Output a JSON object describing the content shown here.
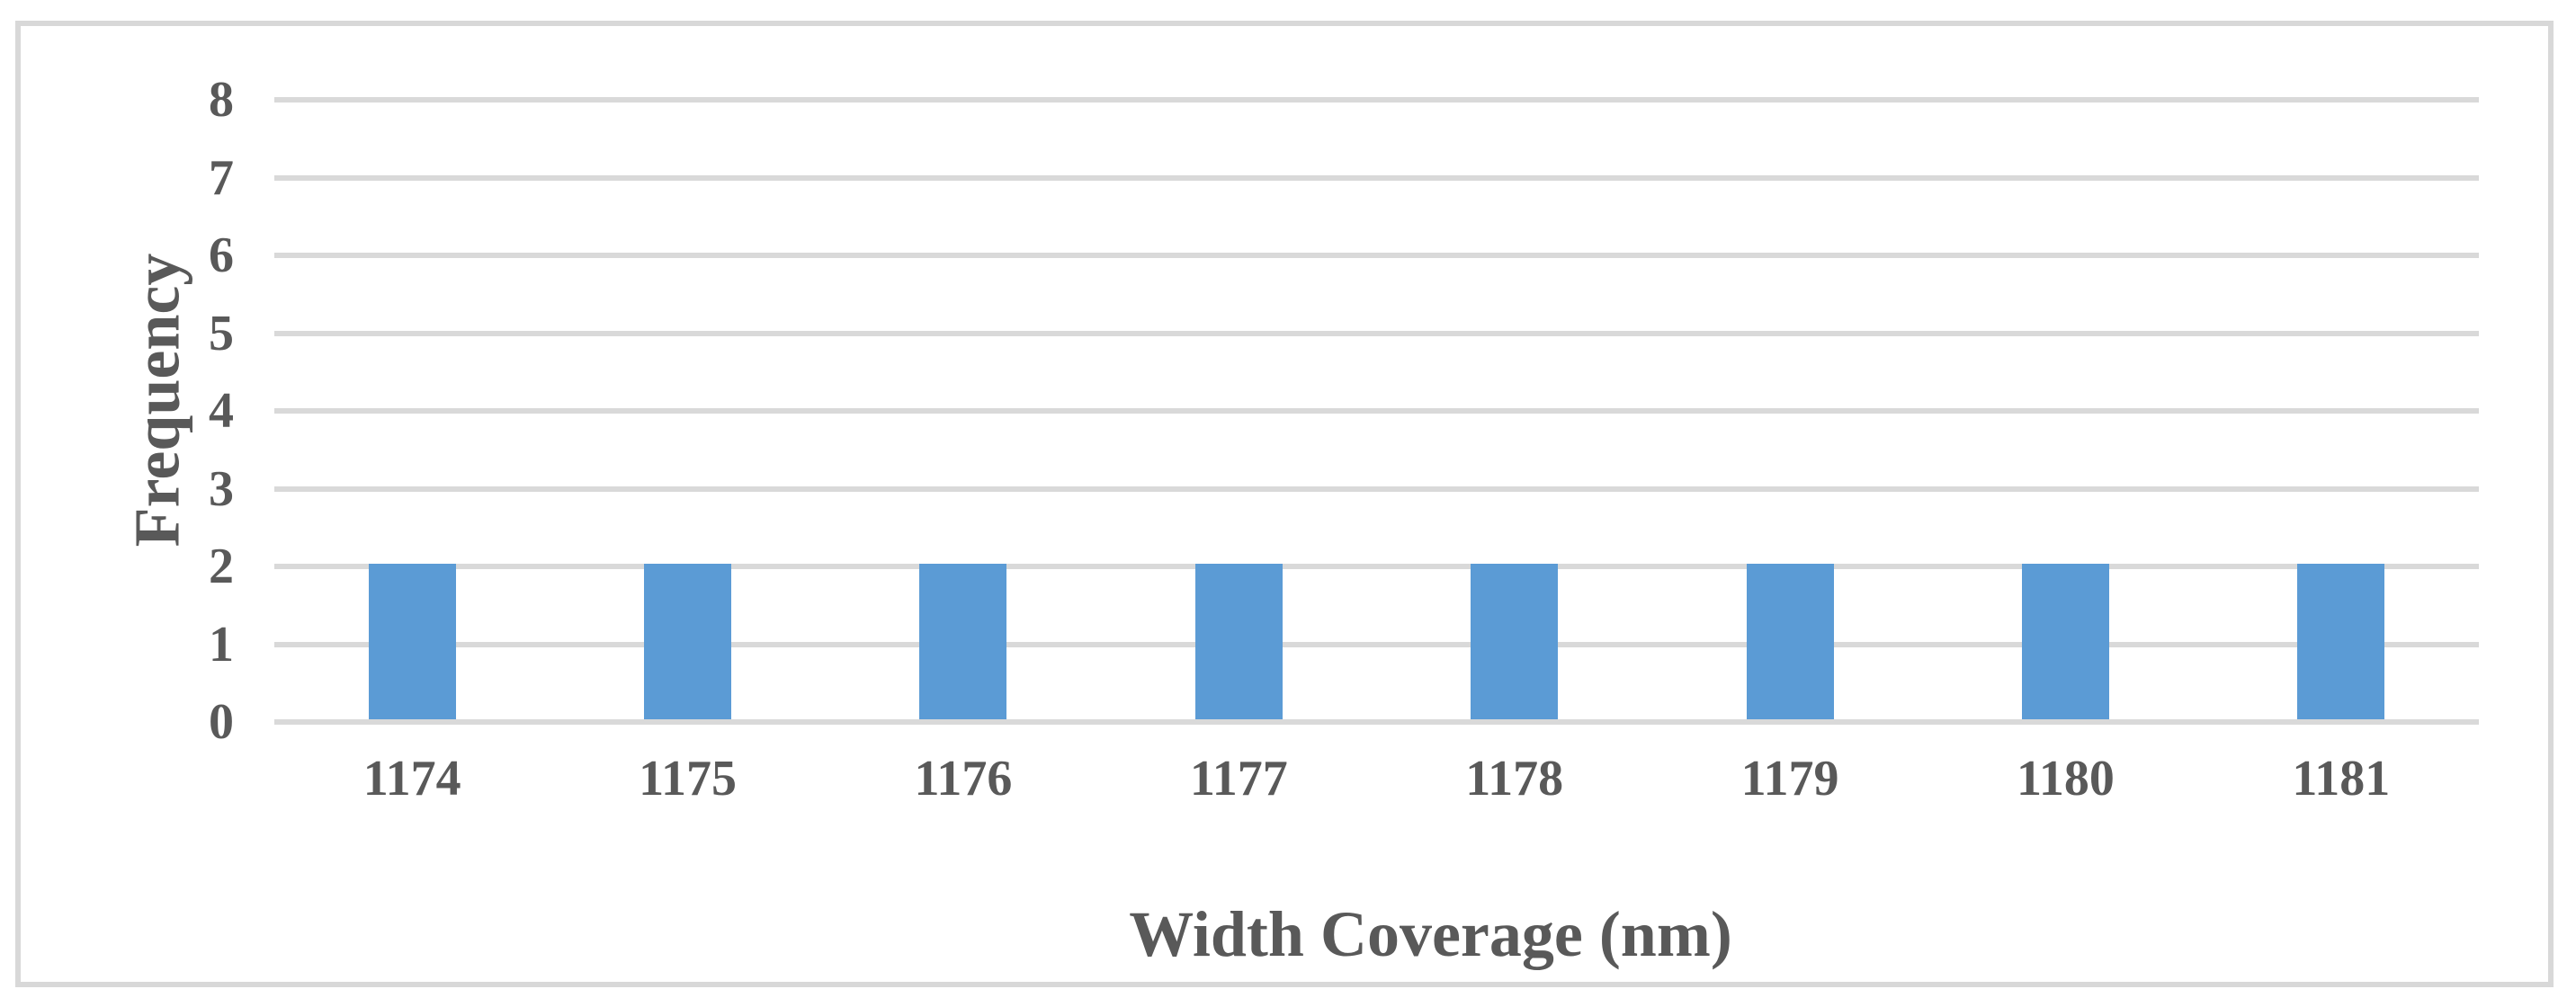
{
  "chart_data": {
    "type": "bar",
    "title": "",
    "categories": [
      "1174",
      "1175",
      "1176",
      "1177",
      "1178",
      "1179",
      "1180",
      "1181"
    ],
    "values": [
      2,
      2,
      2,
      2,
      2,
      2,
      2,
      2
    ],
    "xlabel": "Width Coverage (nm)",
    "ylabel": "Frequency",
    "ylim": [
      0,
      8
    ],
    "yticks": [
      0,
      1,
      2,
      3,
      4,
      5,
      6,
      7,
      8
    ],
    "grid": "horizontal",
    "legend": "none",
    "colors": {
      "bar": "#5b9bd5",
      "gridline": "#d9d9d9",
      "text": "#595959",
      "frame_border": "#d8d8d8",
      "background": "#ffffff"
    }
  }
}
